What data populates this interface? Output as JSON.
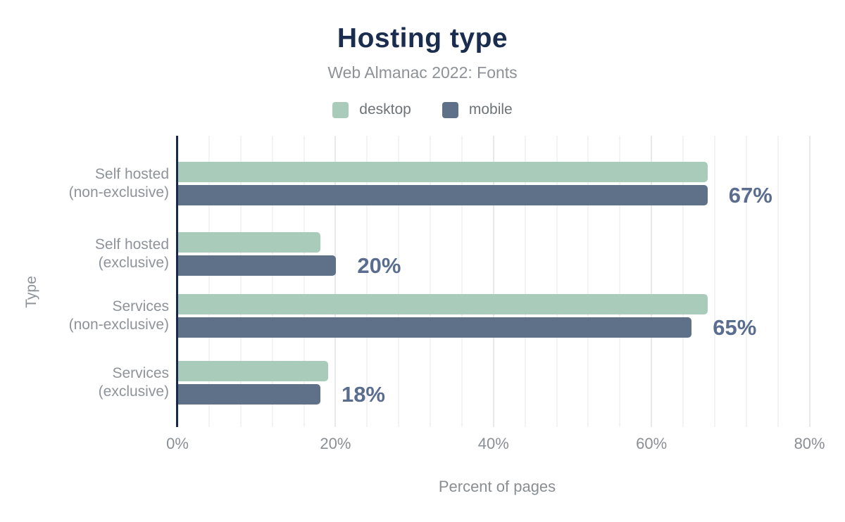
{
  "header": {
    "title": "Hosting type",
    "subtitle": "Web Almanac 2022: Fonts"
  },
  "legend": [
    {
      "label": "desktop",
      "color": "#a8cbba"
    },
    {
      "label": "mobile",
      "color": "#5f7189"
    }
  ],
  "chart_data": {
    "type": "bar",
    "orientation": "horizontal",
    "title": "Hosting type",
    "subtitle": "Web Almanac 2022: Fonts",
    "categories": [
      "Self hosted (non-exclusive)",
      "Self hosted (exclusive)",
      "Services (non-exclusive)",
      "Services (exclusive)"
    ],
    "category_lines": [
      [
        "Self hosted",
        "(non-exclusive)"
      ],
      [
        "Self hosted",
        "(exclusive)"
      ],
      [
        "Services",
        "(non-exclusive)"
      ],
      [
        "Services",
        "(exclusive)"
      ]
    ],
    "series": [
      {
        "name": "desktop",
        "color": "#a8cbba",
        "values": [
          67,
          18,
          67,
          19
        ]
      },
      {
        "name": "mobile",
        "color": "#5f7189",
        "values": [
          67,
          20,
          65,
          18
        ]
      }
    ],
    "annotations": [
      "67%",
      "20%",
      "65%",
      "18%"
    ],
    "annotation_series": "mobile",
    "xlabel": "Percent of pages",
    "ylabel": "Type",
    "xticks": [
      0,
      20,
      40,
      60,
      80
    ],
    "xtick_labels": [
      "0%",
      "20%",
      "40%",
      "60%",
      "80%"
    ],
    "xlim": [
      0,
      80.9
    ],
    "grid_minor_step_pct": 4,
    "grid": true,
    "legend_position": "top"
  },
  "colors": {
    "title": "#1b2d4f",
    "subtitle": "#8d9298",
    "axis_line": "#16294b",
    "annotation": "#5a6d8e",
    "grid_minor": "#f2f3f5",
    "grid_major": "#e7e9ec",
    "desktop": "#a8cbba",
    "mobile": "#5f7189",
    "background": "#ffffff"
  }
}
